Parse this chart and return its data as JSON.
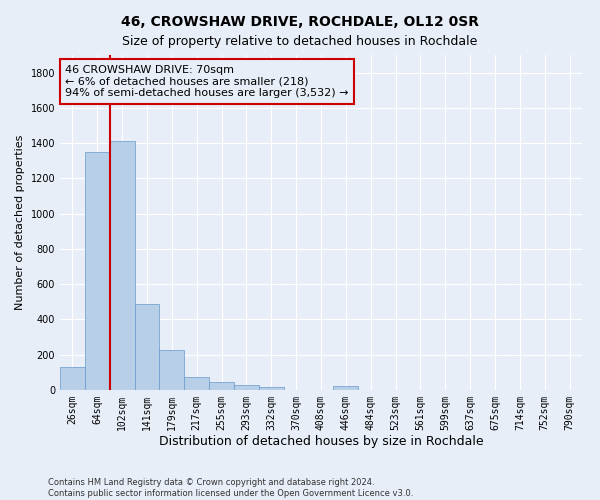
{
  "title": "46, CROWSHAW DRIVE, ROCHDALE, OL12 0SR",
  "subtitle": "Size of property relative to detached houses in Rochdale",
  "xlabel": "Distribution of detached houses by size in Rochdale",
  "ylabel": "Number of detached properties",
  "categories": [
    "26sqm",
    "64sqm",
    "102sqm",
    "141sqm",
    "179sqm",
    "217sqm",
    "255sqm",
    "293sqm",
    "332sqm",
    "370sqm",
    "408sqm",
    "446sqm",
    "484sqm",
    "523sqm",
    "561sqm",
    "599sqm",
    "637sqm",
    "675sqm",
    "714sqm",
    "752sqm",
    "790sqm"
  ],
  "values": [
    130,
    1350,
    1410,
    490,
    225,
    75,
    43,
    27,
    17,
    0,
    0,
    20,
    0,
    0,
    0,
    0,
    0,
    0,
    0,
    0,
    0
  ],
  "bar_color": "#b8cfe8",
  "bar_edge_color": "#6699cc",
  "property_line_x": 1.5,
  "property_line_color": "#cc0000",
  "annotation_text": "46 CROWSHAW DRIVE: 70sqm\n← 6% of detached houses are smaller (218)\n94% of semi-detached houses are larger (3,532) →",
  "annotation_box_color": "#cc0000",
  "ylim": [
    0,
    1900
  ],
  "yticks": [
    0,
    200,
    400,
    600,
    800,
    1000,
    1200,
    1400,
    1600,
    1800
  ],
  "footer": "Contains HM Land Registry data © Crown copyright and database right 2024.\nContains public sector information licensed under the Open Government Licence v3.0.",
  "bg_color": "#e8eef8",
  "grid_color": "#ffffff",
  "title_fontsize": 10,
  "subtitle_fontsize": 9,
  "tick_fontsize": 7,
  "ylabel_fontsize": 8,
  "xlabel_fontsize": 9,
  "annotation_fontsize": 8
}
